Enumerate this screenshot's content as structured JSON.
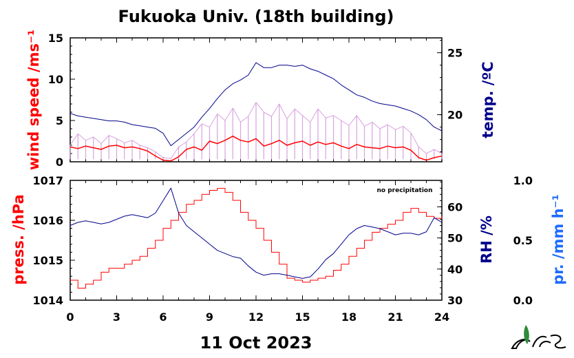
{
  "title": "Fukuoka Univ. (18th building)",
  "date_label": "11 Oct 2023",
  "note": "no precipitation",
  "colors": {
    "wind_avg": "#ff0000",
    "wind_raw": "#d9a0e0",
    "temp": "#00008b",
    "press": "#ff0000",
    "rh": "#00008b",
    "precip_axis": "#1e6bff"
  },
  "chart_data": [
    {
      "type": "line",
      "panel": "top",
      "x_ticks": [
        "0",
        "3",
        "6",
        "9",
        "12",
        "15",
        "18",
        "21",
        "24"
      ],
      "xlim": [
        0,
        24
      ],
      "left_axis": {
        "label": "wind speed /ms⁻¹",
        "ylim": [
          0,
          15
        ],
        "ticks": [
          "0",
          "5",
          "10",
          "15"
        ]
      },
      "right_axis": {
        "label": "temp. /ºC",
        "ylim": [
          16.2,
          26.2
        ],
        "ticks": [
          "20",
          "25"
        ]
      },
      "series": [
        {
          "axis": "left",
          "style": "raw",
          "x": [
            0,
            0.5,
            1,
            1.5,
            2,
            2.5,
            3,
            3.5,
            4,
            4.5,
            5,
            5.5,
            6,
            6.5,
            7,
            7.5,
            8,
            8.5,
            9,
            9.5,
            10,
            10.5,
            11,
            11.5,
            12,
            12.5,
            13,
            13.5,
            14,
            14.5,
            15,
            15.5,
            16,
            16.5,
            17,
            17.5,
            18,
            18.5,
            19,
            19.5,
            20,
            20.5,
            21,
            21.5,
            22,
            22.5,
            23,
            23.5,
            24
          ],
          "values": [
            2.0,
            3.4,
            2.6,
            3.0,
            2.2,
            3.2,
            2.8,
            2.3,
            2.6,
            2.0,
            1.7,
            1.2,
            0.5,
            0.4,
            1.8,
            2.4,
            3.4,
            4.6,
            4.2,
            5.8,
            5.0,
            6.5,
            4.8,
            5.5,
            7.2,
            6.0,
            5.5,
            7.0,
            5.2,
            6.4,
            5.6,
            4.8,
            6.4,
            5.3,
            5.6,
            5.0,
            4.4,
            5.6,
            4.3,
            4.8,
            4.0,
            4.5,
            3.9,
            4.3,
            3.5,
            1.8,
            1.0,
            1.5,
            1.0
          ]
        },
        {
          "axis": "left",
          "style": "avg",
          "x": [
            0,
            0.5,
            1,
            1.5,
            2,
            2.5,
            3,
            3.5,
            4,
            4.5,
            5,
            5.5,
            6,
            6.5,
            7,
            7.5,
            8,
            8.5,
            9,
            9.5,
            10,
            10.5,
            11,
            11.5,
            12,
            12.5,
            13,
            13.5,
            14,
            14.5,
            15,
            15.5,
            16,
            16.5,
            17,
            17.5,
            18,
            18.5,
            19,
            19.5,
            20,
            20.5,
            21,
            21.5,
            22,
            22.5,
            23,
            23.5,
            24
          ],
          "values": [
            1.8,
            1.6,
            1.9,
            1.7,
            1.5,
            1.9,
            2.0,
            1.7,
            1.8,
            1.6,
            1.3,
            0.7,
            0.2,
            0.1,
            0.6,
            1.5,
            1.8,
            1.4,
            2.5,
            2.2,
            2.6,
            3.1,
            2.6,
            2.4,
            2.8,
            1.9,
            2.2,
            2.6,
            2.0,
            2.3,
            2.5,
            2.0,
            2.4,
            2.1,
            2.3,
            1.9,
            1.6,
            2.1,
            1.8,
            1.7,
            1.6,
            1.9,
            1.7,
            1.8,
            1.4,
            0.5,
            0.2,
            0.5,
            0.7
          ]
        },
        {
          "axis": "right",
          "style": "temp",
          "x": [
            0,
            0.5,
            1,
            1.5,
            2,
            2.5,
            3,
            3.5,
            4,
            4.5,
            5,
            5.5,
            6,
            6.5,
            7,
            7.5,
            8,
            8.5,
            9,
            9.5,
            10,
            10.5,
            11,
            11.5,
            12,
            12.5,
            13,
            13.5,
            14,
            14.5,
            15,
            15.5,
            16,
            16.5,
            17,
            17.5,
            18,
            18.5,
            19,
            19.5,
            20,
            20.5,
            21,
            21.5,
            22,
            22.5,
            23,
            23.5,
            24
          ],
          "values": [
            20.1,
            19.9,
            19.8,
            19.7,
            19.6,
            19.5,
            19.5,
            19.4,
            19.2,
            19.1,
            19.0,
            18.9,
            18.5,
            17.5,
            18.0,
            18.5,
            19.0,
            19.8,
            20.5,
            21.3,
            22.0,
            22.5,
            22.8,
            23.2,
            24.2,
            23.8,
            23.8,
            24.0,
            24.0,
            23.9,
            24.0,
            23.7,
            23.5,
            23.2,
            22.9,
            22.4,
            22.0,
            21.6,
            21.4,
            21.1,
            20.9,
            20.8,
            20.7,
            20.5,
            20.3,
            20.0,
            19.6,
            19.0,
            18.7
          ]
        }
      ]
    },
    {
      "type": "line",
      "panel": "bottom",
      "x_ticks": [
        "0",
        "3",
        "6",
        "9",
        "12",
        "15",
        "18",
        "21",
        "24"
      ],
      "xlim": [
        0,
        24
      ],
      "xlabel": "",
      "left_axis": {
        "label": "press. /hPa",
        "ylim": [
          1014,
          1017
        ],
        "ticks": [
          "1014",
          "1015",
          "1016",
          "1017"
        ]
      },
      "right_axis": {
        "label": "RH /%",
        "ylim": [
          30,
          68.5
        ],
        "ticks": [
          "30",
          "40",
          "50",
          "60"
        ]
      },
      "precip_axis": {
        "label": "pr. /mm h⁻¹",
        "ylim": [
          0,
          1
        ],
        "ticks": [
          "0.0",
          "0.5",
          "1.0"
        ]
      },
      "series": [
        {
          "axis": "left",
          "style": "press",
          "x": [
            0,
            0.5,
            1,
            1.5,
            2,
            2.5,
            3,
            3.5,
            4,
            4.5,
            5,
            5.5,
            6,
            6.5,
            7,
            7.5,
            8,
            8.5,
            9,
            9.5,
            10,
            10.5,
            11,
            11.5,
            12,
            12.5,
            13,
            13.5,
            14,
            14.5,
            15,
            15.5,
            16,
            16.5,
            17,
            17.5,
            18,
            18.5,
            19,
            19.5,
            20,
            20.5,
            21,
            21.5,
            22,
            22.5,
            23,
            23.5,
            24
          ],
          "values": [
            1014.5,
            1014.3,
            1014.4,
            1014.5,
            1014.7,
            1014.8,
            1014.8,
            1014.9,
            1015.0,
            1015.1,
            1015.3,
            1015.5,
            1015.8,
            1016.0,
            1016.2,
            1016.4,
            1016.5,
            1016.65,
            1016.75,
            1016.8,
            1016.7,
            1016.5,
            1016.2,
            1016.0,
            1015.8,
            1015.5,
            1015.2,
            1014.9,
            1014.55,
            1014.5,
            1014.45,
            1014.5,
            1014.55,
            1014.6,
            1014.75,
            1014.9,
            1015.1,
            1015.3,
            1015.5,
            1015.7,
            1015.8,
            1015.9,
            1016.0,
            1016.2,
            1016.3,
            1016.2,
            1016.1,
            1016.05,
            1016.1
          ]
        },
        {
          "axis": "right",
          "style": "rh",
          "x": [
            0,
            0.5,
            1,
            1.5,
            2,
            2.5,
            3,
            3.5,
            4,
            4.5,
            5,
            5.5,
            6,
            6.5,
            7,
            7.5,
            8,
            8.5,
            9,
            9.5,
            10,
            10.5,
            11,
            11.5,
            12,
            12.5,
            13,
            13.5,
            14,
            14.5,
            15,
            15.5,
            16,
            16.5,
            17,
            17.5,
            18,
            18.5,
            19,
            19.5,
            20,
            20.5,
            21,
            21.5,
            22,
            22.5,
            23,
            23.5,
            24
          ],
          "values": [
            54.0,
            55.0,
            55.5,
            55.0,
            54.5,
            55.0,
            56.0,
            57.0,
            57.5,
            57.0,
            56.5,
            58.0,
            62.0,
            66.0,
            58.0,
            54.0,
            52.0,
            50.0,
            48.0,
            46.0,
            45.0,
            44.0,
            43.5,
            41.0,
            39.0,
            38.0,
            38.5,
            38.5,
            38.0,
            37.5,
            37.0,
            37.5,
            40.0,
            43.0,
            45.0,
            48.0,
            51.0,
            53.0,
            54.0,
            53.5,
            53.0,
            52.0,
            51.0,
            51.5,
            51.5,
            51.0,
            52.0,
            56.5,
            55.0
          ]
        }
      ]
    }
  ]
}
